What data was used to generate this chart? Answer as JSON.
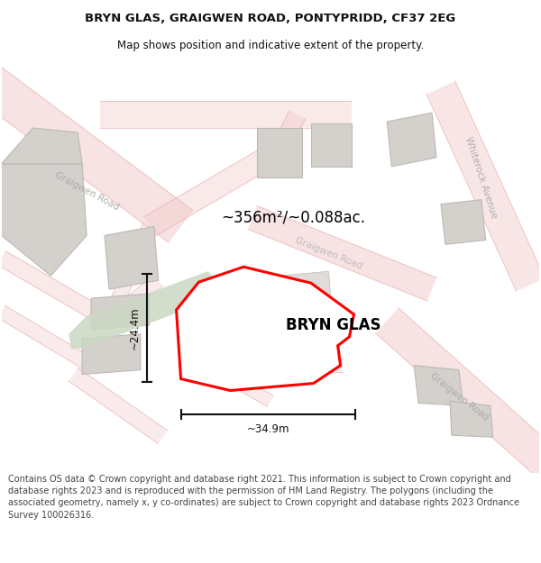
{
  "title_line1": "BRYN GLAS, GRAIGWEN ROAD, PONTYPRIDD, CF37 2EG",
  "title_line2": "Map shows position and indicative extent of the property.",
  "property_name": "BRYN GLAS",
  "area_text": "~356m²/~0.088ac.",
  "width_label": "~34.9m",
  "height_label": "~24.4m",
  "footer_text": "Contains OS data © Crown copyright and database right 2021. This information is subject to Crown copyright and database rights 2023 and is reproduced with the permission of HM Land Registry. The polygons (including the associated geometry, namely x, y co-ordinates) are subject to Crown copyright and database rights 2023 Ordnance Survey 100026316.",
  "map_bg": "#f2f0ee",
  "road_color": "#f0c8c8",
  "road_edge": "#e8b0b0",
  "building_fill": "#d4d0cc",
  "building_edge": "#bcb8b4",
  "property_color": "#ff0000",
  "green_color": "#ccd8c4",
  "road_label_color": "#b0acaa",
  "dim_color": "#111111",
  "text_color": "#111111",
  "title_fontsize": 9.5,
  "subtitle_fontsize": 8.5,
  "footer_fontsize": 7.0,
  "property_label_fontsize": 12,
  "area_fontsize": 12,
  "dim_fontsize": 8.5,
  "road_label_size": 7.5
}
